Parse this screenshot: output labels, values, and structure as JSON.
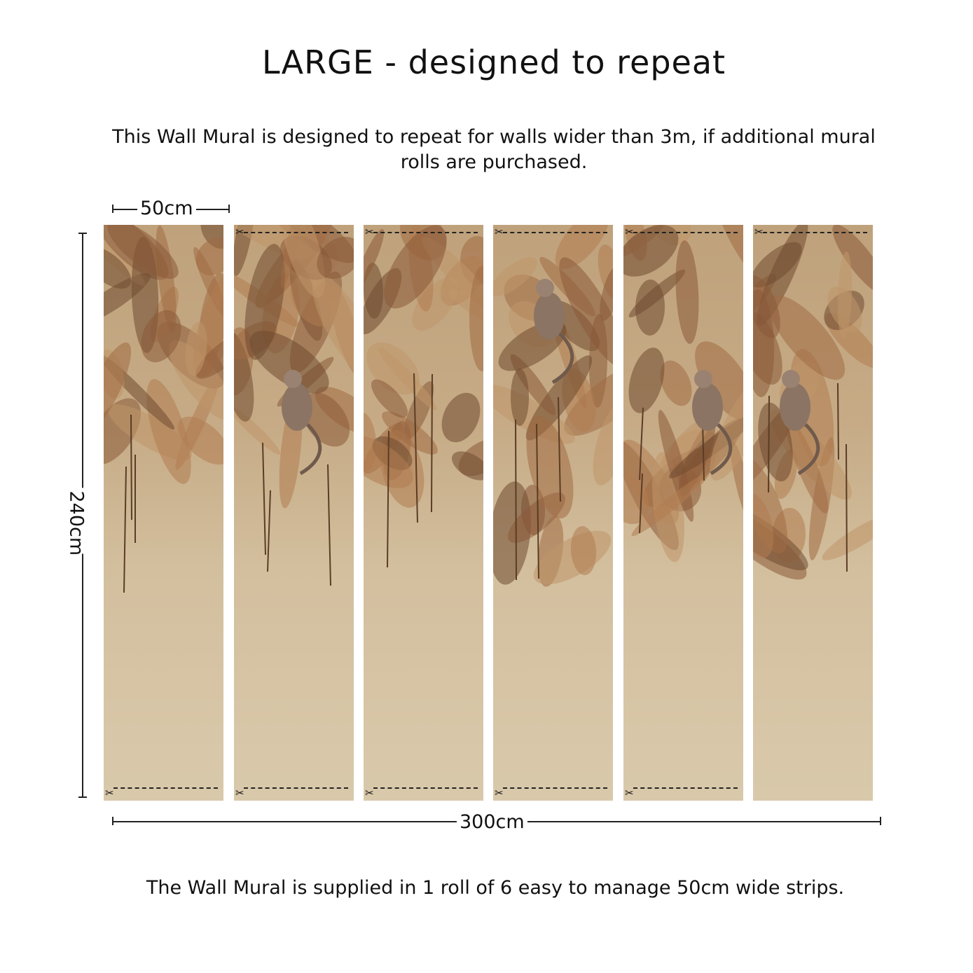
{
  "title": "LARGE - designed to repeat",
  "subtitle": "This Wall Mural is designed to repeat for walls wider than 3m, if additional mural rolls are purchased.",
  "dimensions": {
    "strip_width": "50cm",
    "height": "240cm",
    "total_width": "300cm"
  },
  "footer": "The Wall Mural is supplied in 1 roll of 6 easy to manage 50cm wide strips.",
  "strips": [
    {
      "top_cut": false,
      "bottom_cut": true
    },
    {
      "top_cut": true,
      "bottom_cut": true
    },
    {
      "top_cut": true,
      "bottom_cut": true
    },
    {
      "top_cut": true,
      "bottom_cut": true
    },
    {
      "top_cut": true,
      "bottom_cut": true
    },
    {
      "top_cut": true,
      "bottom_cut": false
    }
  ],
  "colors": {
    "mural_top": "#bfa27c",
    "mural_bottom": "#d9c9ab",
    "foliage": "#8a5a38"
  },
  "icons": {
    "cut_mark": "scissors-icon"
  }
}
